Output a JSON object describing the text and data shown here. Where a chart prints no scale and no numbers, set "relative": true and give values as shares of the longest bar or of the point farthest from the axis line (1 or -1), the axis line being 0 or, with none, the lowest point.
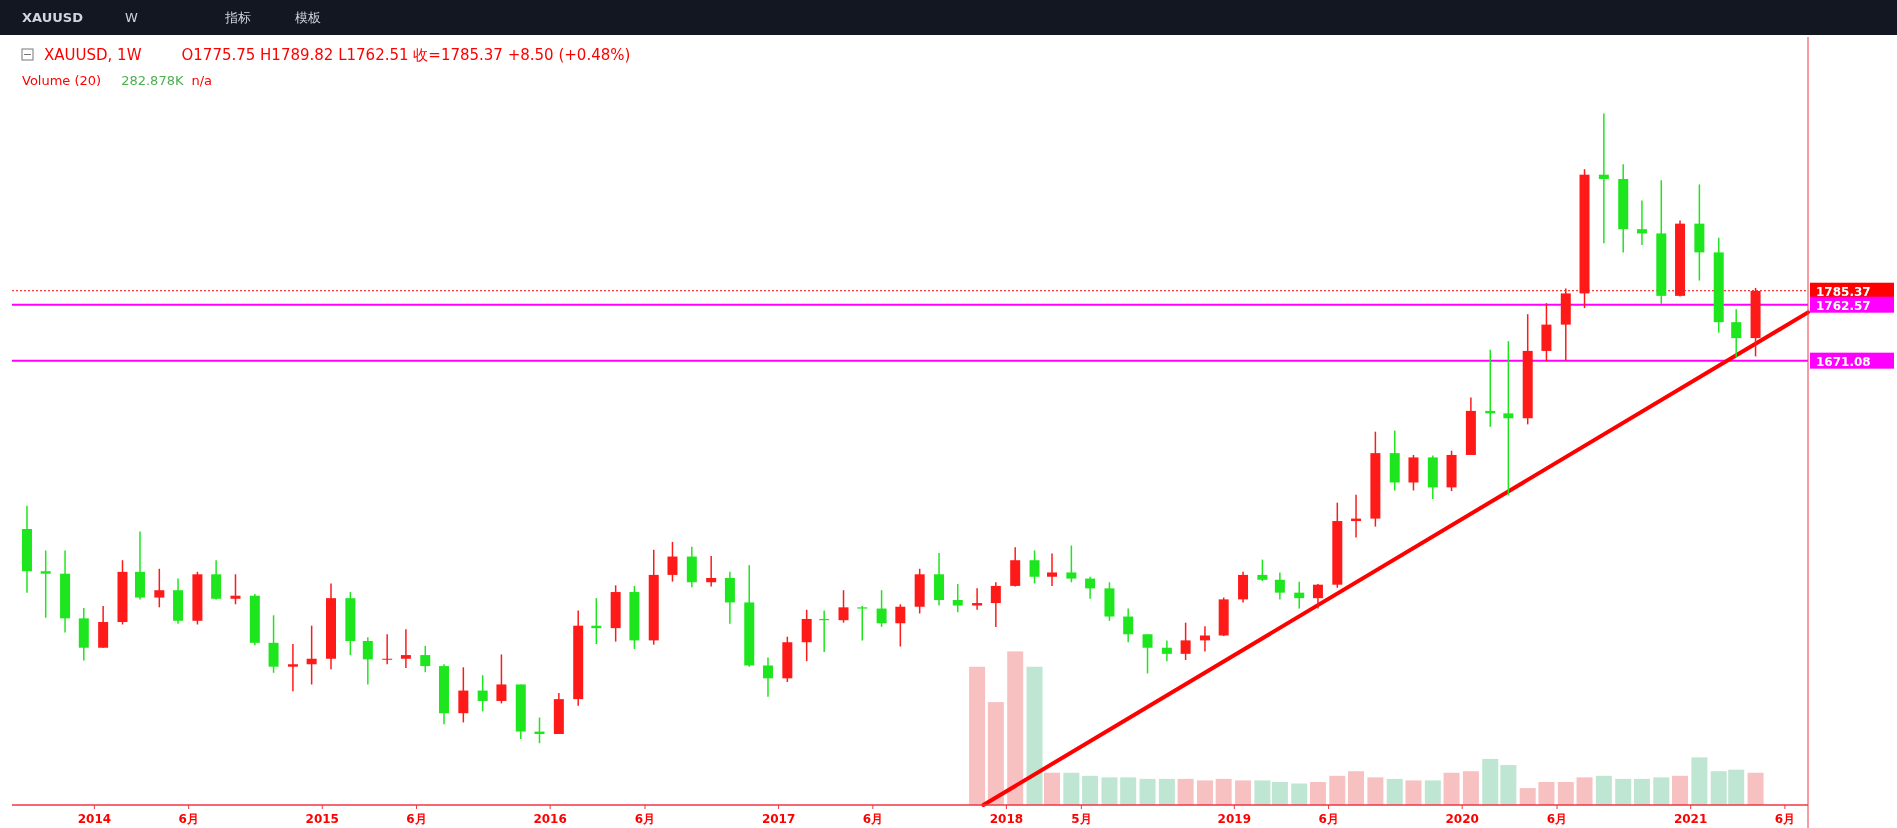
{
  "chart_data": [
    {
      "type": "candlestick",
      "title": "XAUUSD, 1W",
      "subtitle": "O1775.75 H1789.82 L1762.51 收=1785.37 +8.50 (+0.48%)",
      "annotations": [
        "XAUUSD",
        "W",
        "指标",
        "模板"
      ],
      "series": [
        {
          "type": "candlestick",
          "x": [
            "2013-09-15",
            "2013-10-15",
            "2013-11-15",
            "2013-12-15",
            "2014-01-15",
            "2014-02-15",
            "2014-03-15",
            "2014-04-15",
            "2014-05-15",
            "2014-06-15",
            "2014-07-15",
            "2014-08-15",
            "2014-09-15",
            "2014-10-15",
            "2014-11-15",
            "2014-12-15",
            "2015-01-15",
            "2015-02-15",
            "2015-03-15",
            "2015-04-15",
            "2015-05-15",
            "2015-06-15",
            "2015-07-15",
            "2015-08-15",
            "2015-09-15",
            "2015-10-15",
            "2015-11-15",
            "2015-12-15",
            "2016-01-15",
            "2016-02-15",
            "2016-03-15",
            "2016-04-15",
            "2016-05-15",
            "2016-06-15",
            "2016-07-15",
            "2016-08-15",
            "2016-09-15",
            "2016-10-15",
            "2016-11-15",
            "2016-12-15",
            "2017-01-15",
            "2017-02-15",
            "2017-03-15",
            "2017-04-15",
            "2017-05-15",
            "2017-06-15",
            "2017-07-15",
            "2017-08-15",
            "2017-09-15",
            "2017-10-15",
            "2017-11-15",
            "2017-12-15",
            "2018-01-15",
            "2018-02-15",
            "2018-03-15",
            "2018-04-15",
            "2018-05-15",
            "2018-06-15",
            "2018-07-15",
            "2018-08-15",
            "2018-09-15",
            "2018-10-15",
            "2018-11-15",
            "2018-12-15",
            "2019-01-15",
            "2019-02-15",
            "2019-03-15",
            "2019-04-15",
            "2019-05-15",
            "2019-06-15",
            "2019-07-15",
            "2019-08-15",
            "2019-09-15",
            "2019-10-15",
            "2019-11-15",
            "2019-12-15",
            "2020-01-15",
            "2020-02-15",
            "2020-03-15",
            "2020-04-15",
            "2020-05-15",
            "2020-06-15",
            "2020-07-15",
            "2020-08-15",
            "2020-09-15",
            "2020-10-15",
            "2020-11-15",
            "2020-12-15",
            "2021-01-15",
            "2021-02-15",
            "2021-03-15",
            "2021-04-15"
          ],
          "ohlc": [
            [
              1396,
              1434,
              1292,
              1327
            ],
            [
              1327,
              1361,
              1251,
              1323
            ],
            [
              1323,
              1361,
              1227,
              1250
            ],
            [
              1250,
              1267,
              1181,
              1202
            ],
            [
              1202,
              1270,
              1202,
              1244
            ],
            [
              1244,
              1345,
              1240,
              1326
            ],
            [
              1326,
              1392,
              1281,
              1284
            ],
            [
              1284,
              1331,
              1268,
              1296
            ],
            [
              1296,
              1315,
              1241,
              1246
            ],
            [
              1246,
              1326,
              1240,
              1322
            ],
            [
              1322,
              1345,
              1281,
              1282
            ],
            [
              1282,
              1322,
              1273,
              1287
            ],
            [
              1287,
              1290,
              1206,
              1210
            ],
            [
              1210,
              1255,
              1161,
              1171
            ],
            [
              1171,
              1208,
              1131,
              1175
            ],
            [
              1175,
              1238,
              1142,
              1184
            ],
            [
              1184,
              1307,
              1167,
              1283
            ],
            [
              1283,
              1293,
              1190,
              1213
            ],
            [
              1213,
              1219,
              1142,
              1183
            ],
            [
              1183,
              1224,
              1175,
              1184
            ],
            [
              1184,
              1232,
              1169,
              1190
            ],
            [
              1190,
              1205,
              1162,
              1172
            ],
            [
              1172,
              1175,
              1077,
              1095
            ],
            [
              1095,
              1170,
              1080,
              1132
            ],
            [
              1132,
              1157,
              1098,
              1115
            ],
            [
              1115,
              1191,
              1111,
              1142
            ],
            [
              1142,
              1142,
              1053,
              1065
            ],
            [
              1065,
              1088,
              1046,
              1061
            ],
            [
              1061,
              1128,
              1061,
              1118
            ],
            [
              1118,
              1263,
              1107,
              1238
            ],
            [
              1238,
              1283,
              1208,
              1234
            ],
            [
              1234,
              1304,
              1212,
              1293
            ],
            [
              1293,
              1303,
              1200,
              1214
            ],
            [
              1214,
              1362,
              1207,
              1321
            ],
            [
              1321,
              1375,
              1310,
              1351
            ],
            [
              1351,
              1367,
              1301,
              1309
            ],
            [
              1309,
              1352,
              1302,
              1316
            ],
            [
              1316,
              1326,
              1241,
              1276
            ],
            [
              1276,
              1337,
              1171,
              1173
            ],
            [
              1173,
              1186,
              1122,
              1152
            ],
            [
              1152,
              1220,
              1146,
              1211
            ],
            [
              1211,
              1264,
              1180,
              1249
            ],
            [
              1249,
              1263,
              1195,
              1247
            ],
            [
              1247,
              1296,
              1243,
              1268
            ],
            [
              1268,
              1270,
              1214,
              1266
            ],
            [
              1266,
              1296,
              1236,
              1242
            ],
            [
              1242,
              1273,
              1204,
              1269
            ],
            [
              1269,
              1331,
              1258,
              1322
            ],
            [
              1322,
              1357,
              1271,
              1280
            ],
            [
              1280,
              1306,
              1260,
              1271
            ],
            [
              1271,
              1299,
              1264,
              1275
            ],
            [
              1275,
              1309,
              1236,
              1303
            ],
            [
              1303,
              1366,
              1302,
              1345
            ],
            [
              1345,
              1361,
              1307,
              1318
            ],
            [
              1318,
              1356,
              1303,
              1325
            ],
            [
              1325,
              1369,
              1309,
              1315
            ],
            [
              1315,
              1318,
              1282,
              1299
            ],
            [
              1299,
              1309,
              1246,
              1253
            ],
            [
              1253,
              1266,
              1211,
              1224
            ],
            [
              1224,
              1224,
              1160,
              1202
            ],
            [
              1202,
              1214,
              1180,
              1192
            ],
            [
              1192,
              1243,
              1182,
              1214
            ],
            [
              1214,
              1237,
              1196,
              1222
            ],
            [
              1222,
              1284,
              1221,
              1281
            ],
            [
              1281,
              1326,
              1276,
              1321
            ],
            [
              1321,
              1346,
              1311,
              1313
            ],
            [
              1313,
              1325,
              1281,
              1292
            ],
            [
              1292,
              1310,
              1266,
              1283
            ],
            [
              1283,
              1306,
              1266,
              1305
            ],
            [
              1305,
              1439,
              1300,
              1409
            ],
            [
              1409,
              1452,
              1382,
              1413
            ],
            [
              1413,
              1555,
              1400,
              1520
            ],
            [
              1520,
              1557,
              1459,
              1472
            ],
            [
              1472,
              1517,
              1459,
              1513
            ],
            [
              1513,
              1516,
              1445,
              1464
            ],
            [
              1464,
              1524,
              1458,
              1517
            ],
            [
              1517,
              1611,
              1517,
              1589
            ],
            [
              1589,
              1689,
              1563,
              1585
            ],
            [
              1585,
              1703,
              1451,
              1577
            ],
            [
              1577,
              1747,
              1567,
              1687
            ],
            [
              1687,
              1765,
              1670,
              1730
            ],
            [
              1730,
              1789,
              1671,
              1781
            ],
            [
              1781,
              1984,
              1757,
              1975
            ],
            [
              1975,
              2075,
              1863,
              1968
            ],
            [
              1968,
              1992,
              1848,
              1886
            ],
            [
              1886,
              1933,
              1860,
              1879
            ],
            [
              1879,
              1966,
              1764,
              1777
            ],
            [
              1777,
              1900,
              1776,
              1895
            ],
            [
              1895,
              1959,
              1802,
              1848
            ],
            [
              1848,
              1872,
              1717,
              1734
            ],
            [
              1734,
              1755,
              1677,
              1708
            ],
            [
              1708,
              1790,
              1678,
              1785
            ]
          ],
          "colors": [
            "#1ee61e",
            "#1ee61e",
            "#1ee61e",
            "#1ee61e",
            "#ff1a1a",
            "#ff1a1a",
            "#1ee61e",
            "#ff1a1a",
            "#1ee61e",
            "#ff1a1a",
            "#1ee61e",
            "#ff1a1a",
            "#1ee61e",
            "#1ee61e",
            "#ff1a1a",
            "#ff1a1a",
            "#ff1a1a",
            "#1ee61e",
            "#1ee61e",
            "#ff1a1a",
            "#ff1a1a",
            "#1ee61e",
            "#1ee61e",
            "#ff1a1a",
            "#1ee61e",
            "#ff1a1a",
            "#1ee61e",
            "#1ee61e",
            "#ff1a1a",
            "#ff1a1a",
            "#1ee61e",
            "#ff1a1a",
            "#1ee61e",
            "#ff1a1a",
            "#ff1a1a",
            "#1ee61e",
            "#ff1a1a",
            "#1ee61e",
            "#1ee61e",
            "#1ee61e",
            "#ff1a1a",
            "#ff1a1a",
            "#1ee61e",
            "#ff1a1a",
            "#1ee61e",
            "#1ee61e",
            "#ff1a1a",
            "#ff1a1a",
            "#1ee61e",
            "#1ee61e",
            "#ff1a1a",
            "#ff1a1a",
            "#ff1a1a",
            "#1ee61e",
            "#ff1a1a",
            "#1ee61e",
            "#1ee61e",
            "#1ee61e",
            "#1ee61e",
            "#1ee61e",
            "#1ee61e",
            "#ff1a1a",
            "#ff1a1a",
            "#ff1a1a",
            "#ff1a1a",
            "#1ee61e",
            "#1ee61e",
            "#1ee61e",
            "#ff1a1a",
            "#ff1a1a",
            "#ff1a1a",
            "#ff1a1a",
            "#1ee61e",
            "#ff1a1a",
            "#1ee61e",
            "#ff1a1a",
            "#ff1a1a",
            "#1ee61e",
            "#1ee61e",
            "#ff1a1a",
            "#ff1a1a",
            "#ff1a1a",
            "#ff1a1a",
            "#1ee61e",
            "#1ee61e",
            "#1ee61e",
            "#1ee61e",
            "#ff1a1a",
            "#1ee61e",
            "#1ee61e",
            "#1ee61e",
            "#ff1a1a"
          ]
        },
        {
          "type": "line",
          "color": "#ff0000",
          "x": [
            "2017-11-25",
            "2021-07-08"
          ],
          "values": [
            945,
            1750
          ]
        }
      ],
      "xlim": [
        "2013-08-22",
        "2021-07-08"
      ],
      "xticks": [
        {
          "value": "2014-01-01",
          "label": "2014"
        },
        {
          "value": "2014-06-01",
          "label": "6月"
        },
        {
          "value": "2015-01-01",
          "label": "2015"
        },
        {
          "value": "2015-06-01",
          "label": "6月"
        },
        {
          "value": "2016-01-01",
          "label": "2016"
        },
        {
          "value": "2016-06-01",
          "label": "6月"
        },
        {
          "value": "2017-01-01",
          "label": "2017"
        },
        {
          "value": "2017-06-01",
          "label": "6月"
        },
        {
          "value": "2018-01-01",
          "label": "2018"
        },
        {
          "value": "2018-05-01",
          "label": "5月"
        },
        {
          "value": "2019-01-01",
          "label": "2019"
        },
        {
          "value": "2019-06-01",
          "label": "6月"
        },
        {
          "value": "2020-01-01",
          "label": "2020"
        },
        {
          "value": "2020-06-01",
          "label": "6月"
        },
        {
          "value": "2021-01-01",
          "label": "2021"
        },
        {
          "value": "2021-06-01",
          "label": "6月"
        }
      ],
      "ylim": [
        945,
        2200
      ],
      "tick_labels": "x",
      "ref_lines": [
        {
          "axis": "y",
          "value": 1785.37,
          "label": "1785.37",
          "color": "#ff0000",
          "line_style": "dotted"
        },
        {
          "axis": "y",
          "value": 1762.57,
          "label": "1762.57",
          "color": "#ff00ff",
          "line_style": "solid"
        },
        {
          "axis": "y",
          "value": 1671.08,
          "label": "1671.08",
          "color": "#ff00ff",
          "line_style": "solid"
        }
      ]
    },
    {
      "type": "bar",
      "relative": true,
      "tick_labels": false,
      "xlim": [
        "2013-08-22",
        "2021-07-08"
      ],
      "annotations": [
        "Volume (20)",
        "282.878K",
        "n/a"
      ],
      "x": [
        "2017-11-15",
        "2017-12-15",
        "2018-01-15",
        "2018-02-15",
        "2018-03-15",
        "2018-04-15",
        "2018-05-15",
        "2018-06-15",
        "2018-07-15",
        "2018-08-15",
        "2018-09-15",
        "2018-10-15",
        "2018-11-15",
        "2018-12-15",
        "2019-01-15",
        "2019-02-15",
        "2019-03-15",
        "2019-04-15",
        "2019-05-15",
        "2019-06-15",
        "2019-07-15",
        "2019-08-15",
        "2019-09-15",
        "2019-10-15",
        "2019-11-15",
        "2019-12-15",
        "2020-01-15",
        "2020-02-15",
        "2020-03-15",
        "2020-04-15",
        "2020-05-15",
        "2020-06-15",
        "2020-07-15",
        "2020-08-15",
        "2020-09-15",
        "2020-10-15",
        "2020-11-15",
        "2020-12-15",
        "2021-01-15",
        "2021-02-15",
        "2021-03-15",
        "2021-04-15"
      ],
      "values": [
        0.9,
        0.67,
        1,
        0.9,
        0.21,
        0.21,
        0.19,
        0.18,
        0.18,
        0.17,
        0.17,
        0.17,
        0.16,
        0.17,
        0.16,
        0.16,
        0.15,
        0.14,
        0.15,
        0.19,
        0.22,
        0.18,
        0.17,
        0.16,
        0.16,
        0.21,
        0.22,
        0.3,
        0.26,
        0.11,
        0.15,
        0.15,
        0.18,
        0.19,
        0.17,
        0.17,
        0.18,
        0.19,
        0.31,
        0.22,
        0.23,
        0.21
      ],
      "colors": [
        "#f7c1c1",
        "#f7c1c1",
        "#f7c1c1",
        "#bfe5d3",
        "#f7c1c1",
        "#bfe5d3",
        "#bfe5d3",
        "#bfe5d3",
        "#bfe5d3",
        "#bfe5d3",
        "#bfe5d3",
        "#f7c1c1",
        "#f7c1c1",
        "#f7c1c1",
        "#f7c1c1",
        "#bfe5d3",
        "#bfe5d3",
        "#bfe5d3",
        "#f7c1c1",
        "#f7c1c1",
        "#f7c1c1",
        "#f7c1c1",
        "#bfe5d3",
        "#f7c1c1",
        "#bfe5d3",
        "#f7c1c1",
        "#f7c1c1",
        "#bfe5d3",
        "#bfe5d3",
        "#f7c1c1",
        "#f7c1c1",
        "#f7c1c1",
        "#f7c1c1",
        "#bfe5d3",
        "#bfe5d3",
        "#bfe5d3",
        "#bfe5d3",
        "#f7c1c1",
        "#bfe5d3",
        "#bfe5d3",
        "#bfe5d3",
        "#f7c1c1"
      ]
    }
  ]
}
